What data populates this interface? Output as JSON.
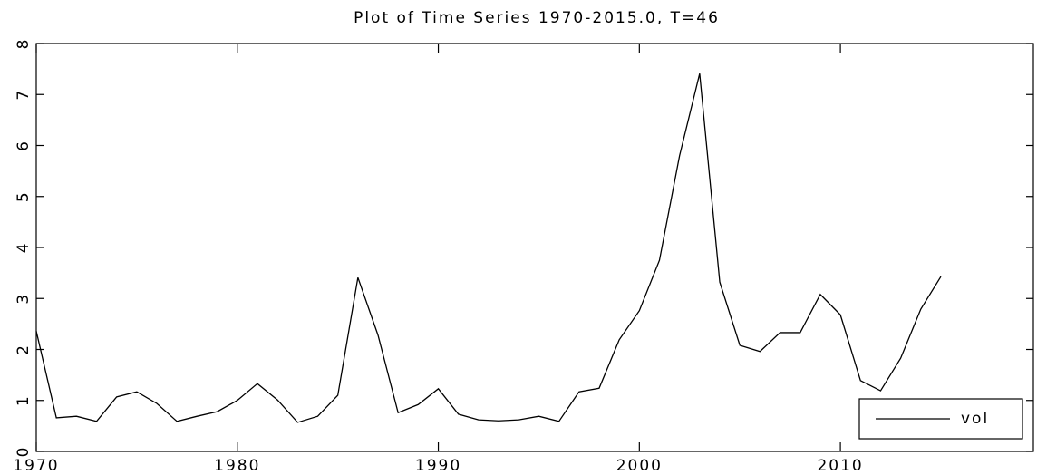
{
  "chart_data": {
    "type": "line",
    "title": "Plot of Time Series 1970-2015.0, T=46",
    "x": [
      1970,
      1971,
      1972,
      1973,
      1974,
      1975,
      1976,
      1977,
      1978,
      1979,
      1980,
      1981,
      1982,
      1983,
      1984,
      1985,
      1986,
      1987,
      1988,
      1989,
      1990,
      1991,
      1992,
      1993,
      1994,
      1995,
      1996,
      1997,
      1998,
      1999,
      2000,
      2001,
      2002,
      2003,
      2004,
      2005,
      2006,
      2007,
      2008,
      2009,
      2010,
      2011,
      2012,
      2013,
      2014,
      2015
    ],
    "series": [
      {
        "name": "vol",
        "color": "#000000",
        "values": [
          2.36,
          0.66,
          0.69,
          0.59,
          1.07,
          1.17,
          0.94,
          0.59,
          0.69,
          0.78,
          1.0,
          1.33,
          1.01,
          0.57,
          0.69,
          1.1,
          3.41,
          2.28,
          0.76,
          0.92,
          1.23,
          0.73,
          0.62,
          0.6,
          0.62,
          0.69,
          0.59,
          1.17,
          1.24,
          2.19,
          2.76,
          3.75,
          5.8,
          7.41,
          3.32,
          2.08,
          1.96,
          2.33,
          2.33,
          3.08,
          2.68,
          1.39,
          1.19,
          1.83,
          2.79,
          3.43
        ]
      }
    ],
    "xlim": [
      1970,
      2019.6
    ],
    "xticks": [
      1970,
      1980,
      1990,
      2000,
      2010
    ],
    "ylim": [
      0,
      8
    ],
    "yticks": [
      0,
      1,
      2,
      3,
      4,
      5,
      6,
      7,
      8
    ],
    "legend": "lower right",
    "grid": false
  }
}
